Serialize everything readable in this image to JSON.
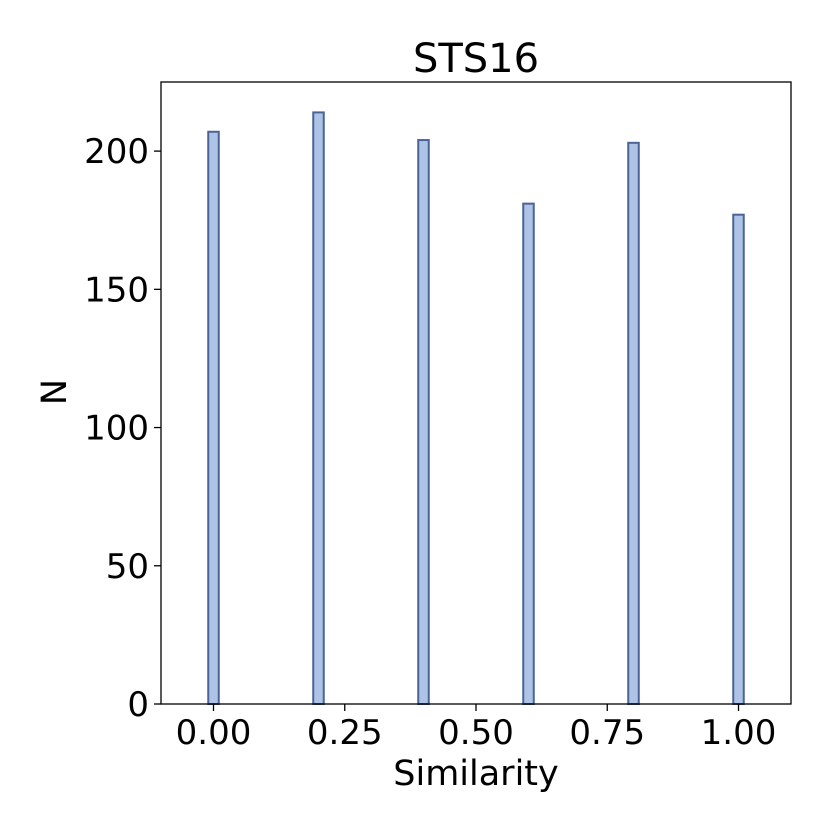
{
  "chart_data": {
    "type": "bar",
    "title": "STS16",
    "xlabel": "Similarity",
    "ylabel": "N",
    "x": [
      0.0,
      0.2,
      0.4,
      0.6,
      0.8,
      1.0
    ],
    "values": [
      207,
      214,
      204,
      181,
      203,
      177
    ],
    "bin_width": 0.02,
    "xlim": [
      -0.1,
      1.1
    ],
    "ylim": [
      0,
      225
    ],
    "xticks": [
      0.0,
      0.25,
      0.5,
      0.75,
      1.0
    ],
    "xtick_labels": [
      "0.00",
      "0.25",
      "0.50",
      "0.75",
      "1.00"
    ],
    "yticks": [
      0,
      50,
      100,
      150,
      200
    ],
    "ytick_labels": [
      "0",
      "50",
      "100",
      "150",
      "200"
    ],
    "grid": false,
    "colors": {
      "bar_fill": "#aec3e5",
      "bar_edge": "#4a6496",
      "axes": "#000000"
    }
  }
}
